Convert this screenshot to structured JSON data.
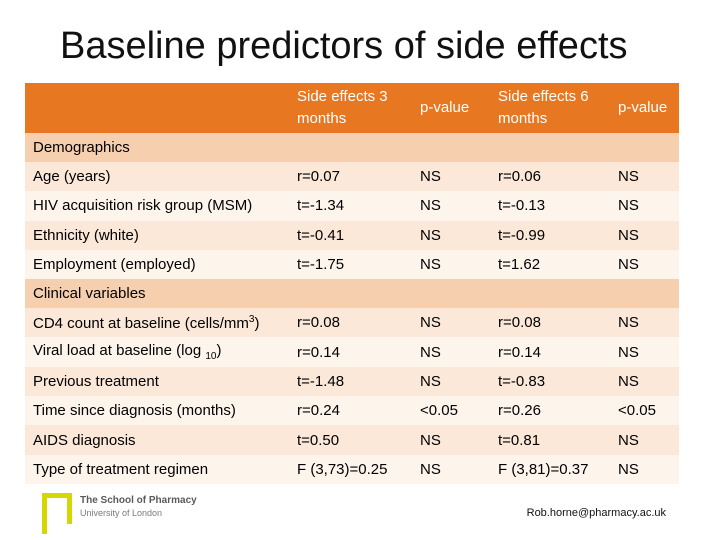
{
  "title": "Baseline predictors of side effects",
  "table": {
    "headers": [
      "",
      "Side effects 3 months",
      "p-value",
      "Side effects 6 months",
      "p-value"
    ],
    "sections": [
      {
        "label": "Demographics",
        "rows": [
          {
            "label": "Age (years)",
            "values": [
              "r=0.07",
              "NS",
              "r=0.06",
              "NS"
            ]
          },
          {
            "label": "HIV acquisition risk group (MSM)",
            "values": [
              "t=-1.34",
              "NS",
              "t=-0.13",
              "NS"
            ]
          },
          {
            "label": "Ethnicity (white)",
            "values": [
              "t=-0.41",
              "NS",
              "t=-0.99",
              "NS"
            ]
          },
          {
            "label": "Employment (employed)",
            "values": [
              "t=-1.75",
              "NS",
              "t=1.62",
              "NS"
            ]
          }
        ]
      },
      {
        "label": "Clinical variables",
        "rows": [
          {
            "label": "CD4 count at baseline (cells/mm",
            "unit_sup": "3",
            "label_end": ")",
            "values": [
              "r=0.08",
              "NS",
              "r=0.08",
              "NS"
            ]
          },
          {
            "label": "Viral load at baseline (log ",
            "unit_sub": "10",
            "label_end": ")",
            "values": [
              "r=0.14",
              "NS",
              "r=0.14",
              "NS"
            ]
          },
          {
            "label": "Previous treatment",
            "values": [
              "t=-1.48",
              "NS",
              "t=-0.83",
              "NS"
            ]
          },
          {
            "label": "Time since diagnosis (months)",
            "values": [
              "r=0.24",
              "<0.05",
              "r=0.26",
              "<0.05"
            ]
          },
          {
            "label": "AIDS diagnosis",
            "values": [
              "t=0.50",
              "NS",
              "t=0.81",
              "NS"
            ]
          },
          {
            "label": "Type of treatment regimen",
            "values": [
              "F (3,73)=0.25",
              "NS",
              "F (3,81)=0.37",
              "NS"
            ]
          }
        ]
      }
    ]
  },
  "footer": {
    "logo_name": "The School of Pharmacy",
    "logo_sub": "University of London",
    "email": "Rob.horne@pharmacy.ac.uk"
  },
  "colors": {
    "header": "#e87722",
    "section": "#f6cfaf",
    "row_odd": "#fbe8d9",
    "row_even": "#fdf4ec",
    "logo_accent": "#d6d600"
  }
}
